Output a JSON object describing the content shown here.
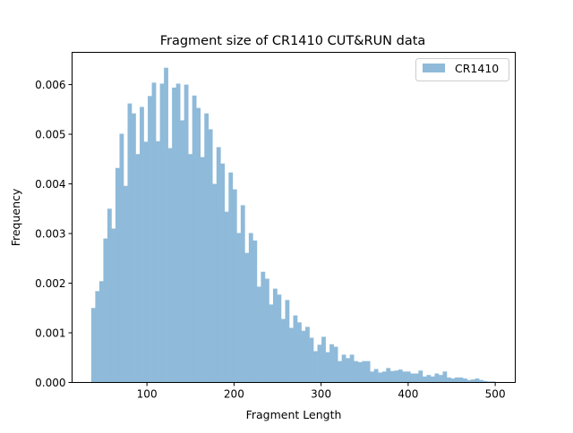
{
  "chart_data": {
    "type": "bar",
    "title": "Fragment size of CR1410 CUT&RUN data",
    "xlabel": "Fragment Length",
    "ylabel": "Frequency",
    "xlim": [
      14,
      523
    ],
    "ylim": [
      0,
      0.00665
    ],
    "bin_range": [
      36,
      500
    ],
    "xticks": [
      100,
      200,
      300,
      400,
      500
    ],
    "xtick_labels": [
      "100",
      "200",
      "300",
      "400",
      "500"
    ],
    "yticks": [
      0,
      0.001,
      0.002,
      0.003,
      0.004,
      0.005,
      0.006
    ],
    "ytick_labels": [
      "0.000",
      "0.001",
      "0.002",
      "0.003",
      "0.004",
      "0.005",
      "0.006"
    ],
    "grid": false,
    "legend": {
      "position": "top-right",
      "entries": [
        "CR1410"
      ]
    },
    "series": [
      {
        "name": "CR1410",
        "color": "#8fbad9",
        "values": [
          0.0015,
          0.00184,
          0.00204,
          0.0029,
          0.0035,
          0.0031,
          0.00432,
          0.00501,
          0.00396,
          0.00562,
          0.00542,
          0.0046,
          0.00555,
          0.00485,
          0.00577,
          0.00604,
          0.00486,
          0.00602,
          0.00634,
          0.00472,
          0.00594,
          0.00602,
          0.00528,
          0.006,
          0.0046,
          0.00578,
          0.00553,
          0.00454,
          0.00542,
          0.0051,
          0.004,
          0.00474,
          0.00441,
          0.00344,
          0.00423,
          0.00389,
          0.00301,
          0.00357,
          0.00261,
          0.00301,
          0.00286,
          0.00193,
          0.00223,
          0.00209,
          0.00157,
          0.00189,
          0.00177,
          0.00128,
          0.00166,
          0.0011,
          0.00135,
          0.00121,
          0.00104,
          0.00112,
          0.0009,
          0.00063,
          0.00076,
          0.00092,
          0.00061,
          0.00077,
          0.00072,
          0.00043,
          0.00056,
          0.00049,
          0.00056,
          0.00043,
          0.00041,
          0.00043,
          0.00043,
          0.00022,
          0.00027,
          0.0002,
          0.00022,
          0.00029,
          0.00023,
          0.00024,
          0.00026,
          0.00022,
          0.00022,
          0.00018,
          0.00018,
          0.00024,
          0.00012,
          0.00015,
          0.00012,
          0.00018,
          0.00015,
          0.00022,
          0.0001,
          8e-05,
          0.0001,
          0.0001,
          8e-05,
          5e-05,
          6e-05,
          8e-05,
          5e-05,
          3e-05,
          2e-05,
          2e-05
        ]
      }
    ]
  }
}
